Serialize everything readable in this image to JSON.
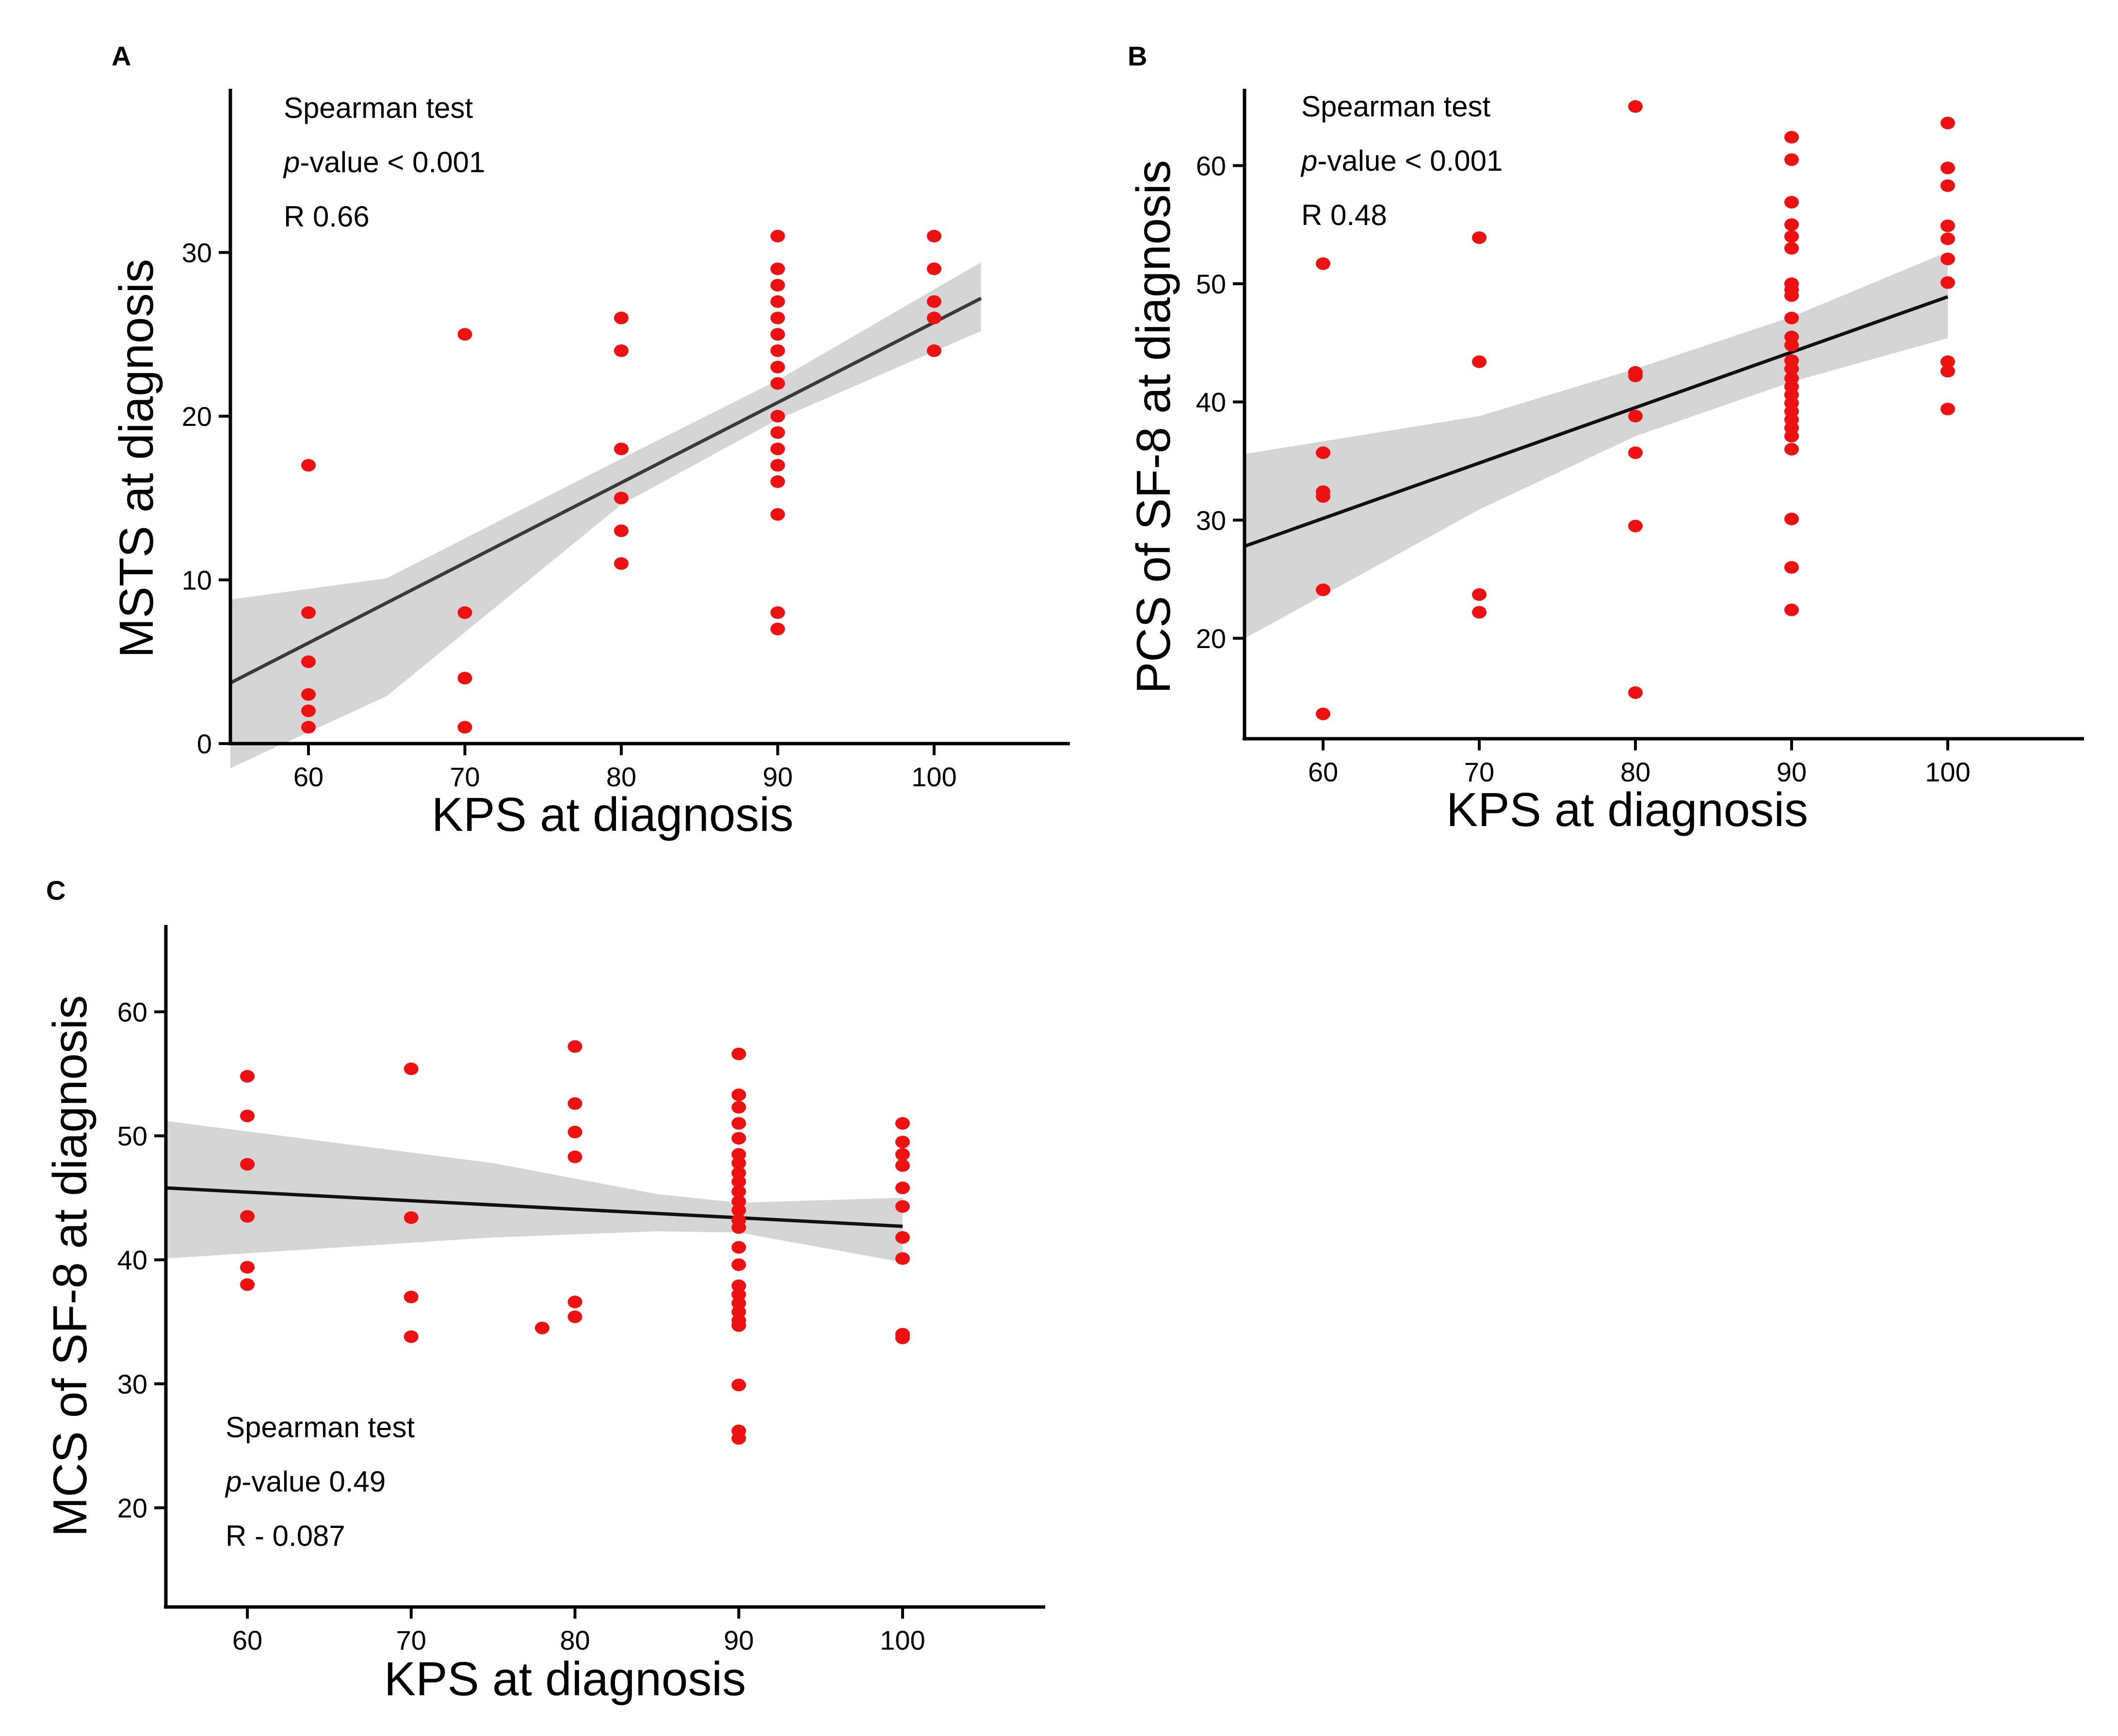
{
  "figure": {
    "point_color": "#ee1111",
    "band_color": "#d5d5d5",
    "line_color": "#111111"
  },
  "chart_data": [
    {
      "type": "scatter",
      "panel": "A",
      "xlabel": "KPS at diagnosis",
      "ylabel": "MSTS at diagnosis",
      "xlim": [
        55,
        108
      ],
      "ylim": [
        0,
        40
      ],
      "xticks": [
        60,
        70,
        80,
        90,
        100
      ],
      "yticks": [
        0,
        10,
        20,
        30
      ],
      "annotation": {
        "test": "Spearman test",
        "p_prefix": "p",
        "p_rest": "-value < 0.001",
        "r": "R 0.66"
      },
      "fit": {
        "x": [
          55,
          103
        ],
        "y": [
          3.7,
          27.2
        ]
      },
      "ci_band": {
        "x": [
          55,
          65,
          80,
          90,
          103
        ],
        "upper": [
          8.8,
          10.1,
          17.4,
          22.2,
          29.4
        ],
        "lower": [
          -1.5,
          2.9,
          14.6,
          19.8,
          25.2
        ]
      },
      "points": [
        [
          60,
          17
        ],
        [
          60,
          8
        ],
        [
          60,
          5
        ],
        [
          60,
          3
        ],
        [
          60,
          2
        ],
        [
          60,
          1
        ],
        [
          70,
          25
        ],
        [
          70,
          8
        ],
        [
          70,
          4
        ],
        [
          70,
          1
        ],
        [
          80,
          26
        ],
        [
          80,
          24
        ],
        [
          80,
          18
        ],
        [
          80,
          15
        ],
        [
          80,
          13
        ],
        [
          80,
          11
        ],
        [
          90,
          31
        ],
        [
          90,
          29
        ],
        [
          90,
          28
        ],
        [
          90,
          27
        ],
        [
          90,
          26
        ],
        [
          90,
          25
        ],
        [
          90,
          24
        ],
        [
          90,
          23
        ],
        [
          90,
          22
        ],
        [
          90,
          20
        ],
        [
          90,
          19
        ],
        [
          90,
          18
        ],
        [
          90,
          17
        ],
        [
          90,
          16
        ],
        [
          90,
          14
        ],
        [
          90,
          8
        ],
        [
          90,
          7
        ],
        [
          100,
          31
        ],
        [
          100,
          29
        ],
        [
          100,
          27
        ],
        [
          100,
          26
        ],
        [
          100,
          24
        ]
      ]
    },
    {
      "type": "scatter",
      "panel": "B",
      "xlabel": "KPS at diagnosis",
      "ylabel": "PCS of SF-8 at diagnosis",
      "xlim": [
        55,
        108
      ],
      "ylim": [
        11.5,
        66.5
      ],
      "xticks": [
        60,
        70,
        80,
        90,
        100
      ],
      "yticks": [
        20,
        30,
        40,
        50,
        60
      ],
      "annotation": {
        "test": "Spearman test",
        "p_prefix": "p",
        "p_rest": "-value < 0.001",
        "r": "R 0.48"
      },
      "fit": {
        "x": [
          55,
          100
        ],
        "y": [
          27.8,
          48.9
        ]
      },
      "ci_band": {
        "x": [
          55,
          70,
          80,
          90,
          100
        ],
        "upper": [
          35.6,
          38.8,
          42.8,
          47.2,
          52.7
        ],
        "lower": [
          20.0,
          30.9,
          37.1,
          41.7,
          45.4
        ]
      },
      "points": [
        [
          60,
          51.7
        ],
        [
          60,
          35.7
        ],
        [
          60,
          32.4
        ],
        [
          60,
          32.0
        ],
        [
          60,
          24.1
        ],
        [
          60,
          13.6
        ],
        [
          70,
          53.9
        ],
        [
          70,
          43.4
        ],
        [
          70,
          23.7
        ],
        [
          70,
          22.2
        ],
        [
          80,
          65.0
        ],
        [
          80,
          42.5
        ],
        [
          80,
          42.2
        ],
        [
          80,
          38.8
        ],
        [
          80,
          35.7
        ],
        [
          80,
          29.5
        ],
        [
          80,
          15.4
        ],
        [
          90,
          62.4
        ],
        [
          90,
          60.5
        ],
        [
          90,
          56.9
        ],
        [
          90,
          55.0
        ],
        [
          90,
          54.0
        ],
        [
          90,
          53.0
        ],
        [
          90,
          50.0
        ],
        [
          90,
          49.5
        ],
        [
          90,
          49.0
        ],
        [
          90,
          47.1
        ],
        [
          90,
          45.5
        ],
        [
          90,
          44.8
        ],
        [
          90,
          43.5
        ],
        [
          90,
          42.8
        ],
        [
          90,
          42.0
        ],
        [
          90,
          41.3
        ],
        [
          90,
          40.6
        ],
        [
          90,
          39.9
        ],
        [
          90,
          39.2
        ],
        [
          90,
          38.5
        ],
        [
          90,
          37.8
        ],
        [
          90,
          37.1
        ],
        [
          90,
          36.0
        ],
        [
          90,
          30.1
        ],
        [
          90,
          26.0
        ],
        [
          90,
          22.4
        ],
        [
          100,
          63.6
        ],
        [
          100,
          59.8
        ],
        [
          100,
          58.3
        ],
        [
          100,
          54.9
        ],
        [
          100,
          53.8
        ],
        [
          100,
          52.1
        ],
        [
          100,
          50.1
        ],
        [
          100,
          43.4
        ],
        [
          100,
          42.6
        ],
        [
          100,
          39.4
        ]
      ]
    },
    {
      "type": "scatter",
      "panel": "C",
      "xlabel": "KPS at diagnosis",
      "ylabel": "MCS of SF-8 at diagnosis",
      "xlim": [
        55,
        108
      ],
      "ylim": [
        12,
        67
      ],
      "xticks": [
        60,
        70,
        80,
        90,
        100
      ],
      "yticks": [
        20,
        30,
        40,
        50,
        60
      ],
      "annotation": {
        "test": "Spearman test",
        "p_prefix": "p",
        "p_rest": "-value 0.49",
        "r": "R - 0.087"
      },
      "fit": {
        "x": [
          55,
          100
        ],
        "y": [
          45.8,
          42.7
        ]
      },
      "ci_band": {
        "x": [
          55,
          75,
          85,
          90,
          100
        ],
        "upper": [
          51.2,
          47.8,
          45.3,
          44.6,
          45.0
        ],
        "lower": [
          40.1,
          41.8,
          42.3,
          42.2,
          39.8
        ]
      },
      "points": [
        [
          60,
          54.8
        ],
        [
          60,
          51.6
        ],
        [
          60,
          47.7
        ],
        [
          60,
          43.5
        ],
        [
          60,
          39.4
        ],
        [
          60,
          38.0
        ],
        [
          70,
          55.4
        ],
        [
          70,
          43.4
        ],
        [
          70,
          37.0
        ],
        [
          70,
          33.8
        ],
        [
          78,
          34.5
        ],
        [
          80,
          57.2
        ],
        [
          80,
          52.6
        ],
        [
          80,
          50.3
        ],
        [
          80,
          48.3
        ],
        [
          80,
          36.6
        ],
        [
          80,
          35.4
        ],
        [
          90,
          56.6
        ],
        [
          90,
          53.3
        ],
        [
          90,
          52.3
        ],
        [
          90,
          51.0
        ],
        [
          90,
          49.8
        ],
        [
          90,
          48.5
        ],
        [
          90,
          47.8
        ],
        [
          90,
          47.0
        ],
        [
          90,
          46.3
        ],
        [
          90,
          45.5
        ],
        [
          90,
          44.7
        ],
        [
          90,
          44.0
        ],
        [
          90,
          43.2
        ],
        [
          90,
          42.6
        ],
        [
          90,
          41.0
        ],
        [
          90,
          39.6
        ],
        [
          90,
          37.9
        ],
        [
          90,
          37.2
        ],
        [
          90,
          36.5
        ],
        [
          90,
          35.8
        ],
        [
          90,
          35.1
        ],
        [
          90,
          34.7
        ],
        [
          90,
          29.9
        ],
        [
          90,
          26.2
        ],
        [
          90,
          25.6
        ],
        [
          100,
          51.0
        ],
        [
          100,
          49.5
        ],
        [
          100,
          48.5
        ],
        [
          100,
          47.6
        ],
        [
          100,
          45.8
        ],
        [
          100,
          44.3
        ],
        [
          100,
          41.8
        ],
        [
          100,
          40.1
        ],
        [
          100,
          34.0
        ],
        [
          100,
          33.7
        ]
      ]
    }
  ]
}
